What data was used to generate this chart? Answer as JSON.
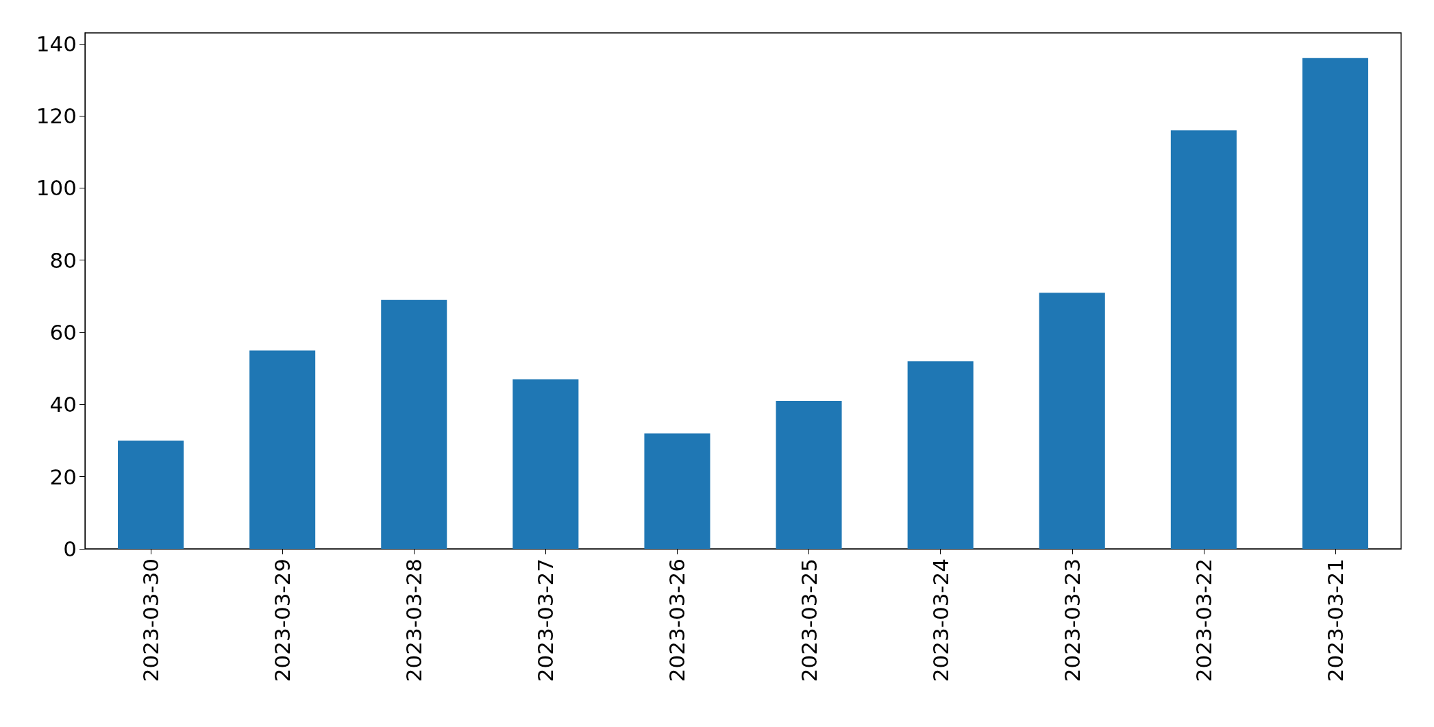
{
  "chart_data": {
    "type": "bar",
    "categories": [
      "2023-03-30",
      "2023-03-29",
      "2023-03-28",
      "2023-03-27",
      "2023-03-26",
      "2023-03-25",
      "2023-03-24",
      "2023-03-23",
      "2023-03-22",
      "2023-03-21"
    ],
    "values": [
      30,
      55,
      69,
      47,
      32,
      41,
      52,
      71,
      116,
      136
    ],
    "color": "#1f77b4",
    "ylim": [
      0,
      143
    ],
    "yticks": [
      0,
      20,
      40,
      60,
      80,
      100,
      120,
      140
    ],
    "grid": false
  }
}
